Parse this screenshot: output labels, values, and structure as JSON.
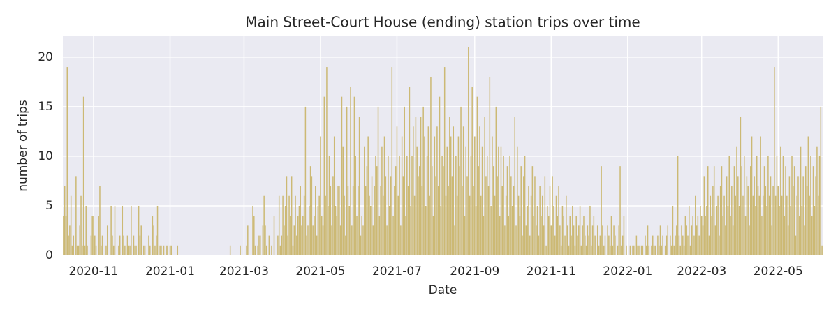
{
  "chart_data": {
    "type": "bar",
    "title": "Main Street-Court House (ending) station trips over time",
    "x_label": "Date",
    "y_label": "number of trips",
    "color": "#ccb974",
    "grid": true,
    "xlim": [
      -0.5,
      605.5
    ],
    "xticks": [
      {
        "value": 24,
        "label": "2020-11"
      },
      {
        "value": 85,
        "label": "2021-01"
      },
      {
        "value": 144,
        "label": "2021-03"
      },
      {
        "value": 205,
        "label": "2021-05"
      },
      {
        "value": 266,
        "label": "2021-07"
      },
      {
        "value": 328,
        "label": "2021-09"
      },
      {
        "value": 389,
        "label": "2021-11"
      },
      {
        "value": 450,
        "label": "2022-01"
      },
      {
        "value": 509,
        "label": "2022-03"
      },
      {
        "value": 570,
        "label": "2022-05"
      }
    ],
    "ylim": [
      0,
      22.1
    ],
    "yticks": [
      0,
      5,
      10,
      15,
      20
    ],
    "values": [
      4,
      7,
      4,
      19,
      2,
      3,
      6,
      1,
      2,
      0,
      8,
      1,
      1,
      3,
      6,
      1,
      16,
      1,
      5,
      1,
      0,
      0,
      2,
      4,
      4,
      2,
      1,
      0,
      4,
      7,
      1,
      2,
      0,
      0,
      1,
      3,
      0,
      0,
      5,
      2,
      1,
      5,
      0,
      0,
      1,
      2,
      0,
      5,
      2,
      1,
      0,
      2,
      1,
      1,
      5,
      0,
      2,
      1,
      1,
      0,
      5,
      2,
      3,
      0,
      1,
      1,
      0,
      0,
      2,
      1,
      0,
      4,
      3,
      1,
      2,
      5,
      0,
      1,
      1,
      0,
      1,
      0,
      1,
      1,
      0,
      1,
      1,
      0,
      0,
      0,
      0,
      1,
      0,
      0,
      0,
      0,
      0,
      0,
      0,
      0,
      0,
      0,
      0,
      0,
      0,
      0,
      0,
      0,
      0,
      0,
      0,
      0,
      0,
      0,
      0,
      0,
      0,
      0,
      0,
      0,
      0,
      0,
      0,
      0,
      0,
      0,
      0,
      0,
      0,
      0,
      0,
      0,
      0,
      1,
      0,
      0,
      0,
      0,
      0,
      0,
      0,
      1,
      0,
      0,
      0,
      0,
      1,
      3,
      0,
      0,
      0,
      5,
      4,
      1,
      0,
      1,
      2,
      2,
      0,
      3,
      6,
      3,
      1,
      0,
      2,
      0,
      1,
      0,
      4,
      0,
      0,
      2,
      6,
      1,
      2,
      6,
      3,
      5,
      8,
      2,
      6,
      4,
      8,
      1,
      3,
      6,
      2,
      4,
      5,
      7,
      3,
      4,
      6,
      15,
      2,
      3,
      5,
      9,
      8,
      3,
      4,
      7,
      2,
      5,
      6,
      12,
      4,
      3,
      16,
      6,
      19,
      5,
      10,
      7,
      3,
      8,
      12,
      5,
      4,
      7,
      7,
      3,
      16,
      11,
      6,
      2,
      15,
      7,
      5,
      17,
      3,
      7,
      16,
      10,
      4,
      7,
      14,
      2,
      4,
      3,
      11,
      7,
      9,
      12,
      6,
      5,
      8,
      3,
      7,
      10,
      9,
      15,
      4,
      7,
      11,
      6,
      12,
      8,
      3,
      10,
      5,
      8,
      19,
      4,
      7,
      9,
      13,
      6,
      10,
      3,
      12,
      8,
      15,
      4,
      10,
      7,
      17,
      5,
      10,
      13,
      6,
      14,
      11,
      8,
      9,
      14,
      7,
      15,
      12,
      5,
      10,
      13,
      6,
      18,
      9,
      4,
      12,
      8,
      13,
      7,
      16,
      5,
      10,
      9,
      19,
      6,
      11,
      7,
      14,
      12,
      8,
      13,
      3,
      10,
      6,
      12,
      9,
      15,
      7,
      13,
      4,
      11,
      8,
      21,
      6,
      10,
      17,
      7,
      12,
      5,
      16,
      9,
      13,
      6,
      11,
      4,
      14,
      8,
      10,
      7,
      18,
      5,
      12,
      9,
      6,
      15,
      8,
      11,
      4,
      11,
      7,
      10,
      3,
      6,
      9,
      4,
      10,
      8,
      5,
      7,
      14,
      3,
      11,
      6,
      4,
      9,
      2,
      8,
      10,
      3,
      5,
      7,
      2,
      6,
      9,
      4,
      8,
      3,
      5,
      2,
      7,
      4,
      6,
      3,
      8,
      1,
      5,
      4,
      7,
      3,
      8,
      5,
      2,
      6,
      4,
      7,
      3,
      1,
      5,
      4,
      2,
      6,
      3,
      1,
      4,
      2,
      5,
      3,
      1,
      4,
      2,
      3,
      5,
      1,
      3,
      4,
      2,
      1,
      3,
      2,
      5,
      1,
      3,
      4,
      2,
      0,
      3,
      1,
      2,
      9,
      3,
      1,
      2,
      0,
      3,
      2,
      1,
      4,
      1,
      3,
      2,
      0,
      1,
      3,
      9,
      1,
      2,
      4,
      0,
      1,
      0,
      0,
      1,
      0,
      1,
      1,
      0,
      2,
      1,
      1,
      0,
      1,
      1,
      0,
      2,
      1,
      3,
      1,
      0,
      1,
      2,
      1,
      1,
      0,
      2,
      1,
      3,
      1,
      2,
      0,
      1,
      2,
      3,
      0,
      2,
      1,
      5,
      1,
      2,
      3,
      10,
      2,
      1,
      3,
      2,
      1,
      4,
      3,
      2,
      5,
      1,
      3,
      4,
      2,
      6,
      3,
      4,
      2,
      5,
      4,
      3,
      8,
      4,
      5,
      9,
      2,
      6,
      4,
      7,
      9,
      3,
      5,
      6,
      2,
      7,
      9,
      4,
      6,
      3,
      8,
      5,
      10,
      4,
      7,
      3,
      9,
      6,
      11,
      8,
      5,
      14,
      9,
      6,
      10,
      4,
      8,
      7,
      3,
      9,
      12,
      6,
      8,
      5,
      10,
      7,
      6,
      12,
      4,
      6,
      9,
      7,
      5,
      10,
      6,
      8,
      3,
      7,
      19,
      6,
      10,
      7,
      5,
      11,
      6,
      10,
      4,
      9,
      6,
      3,
      8,
      5,
      10,
      7,
      9,
      2,
      6,
      8,
      4,
      11,
      5,
      8,
      3,
      9,
      7,
      12,
      6,
      10,
      4,
      9,
      5,
      8,
      11,
      6,
      10,
      15,
      1
    ]
  }
}
